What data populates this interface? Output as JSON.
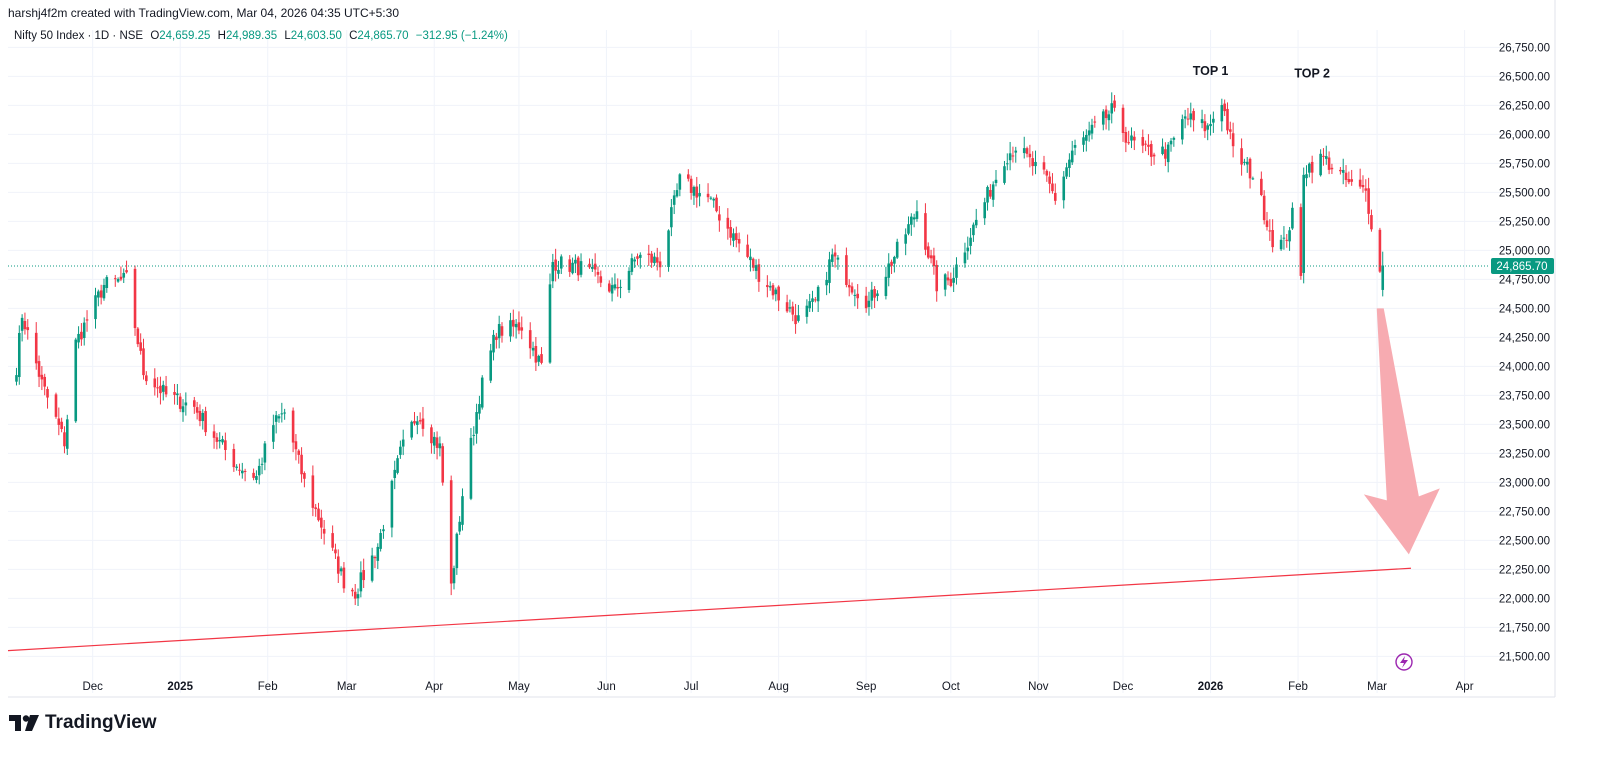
{
  "header": {
    "created_line": "harshj4f2m created with TradingView.com, Mar 04, 2026 04:35 UTC+5:30"
  },
  "legend": {
    "symbol": "Nifty 50 Index · 1D · NSE",
    "open_label": "O",
    "open_value": "24,659.25",
    "high_label": "H",
    "high_value": "24,989.35",
    "low_label": "L",
    "low_value": "24,603.50",
    "close_label": "C",
    "close_value": "24,865.70",
    "change": "−312.95 (−1.24%)"
  },
  "brand": {
    "name": "TradingView",
    "logo_icon": "tradingview-logo-icon"
  },
  "colors": {
    "up": "#089981",
    "down": "#f23645",
    "trendline": "#f23645",
    "arrow": "#f7a6ad",
    "grid": "#f0f3fa",
    "price_badge": "#089981"
  },
  "chart_data": {
    "type": "candlestick",
    "title": "Nifty 50 Index · 1D · NSE",
    "y_axis": {
      "ylim": [
        21400,
        26900
      ],
      "ticks": [
        21500,
        21750,
        22000,
        22250,
        22500,
        22750,
        23000,
        23250,
        23500,
        23750,
        24000,
        24250,
        24500,
        24750,
        25000,
        25250,
        25500,
        25750,
        26000,
        26250,
        26500,
        26750
      ],
      "tick_labels": [
        "21,500.00",
        "21,750.00",
        "22,000.00",
        "22,250.00",
        "22,500.00",
        "22,750.00",
        "23,000.00",
        "23,250.00",
        "23,500.00",
        "23,750.00",
        "24,000.00",
        "24,250.00",
        "24,500.00",
        "24,750.00",
        "25,000.00",
        "25,250.00",
        "25,500.00",
        "25,750.00",
        "26,000.00",
        "26,250.00",
        "26,500.00",
        "26,750.00"
      ],
      "current_price_label": "24,865.70",
      "current_price": 24865.7
    },
    "x_axis": {
      "range": [
        "2024-11-01",
        "2026-04-10"
      ],
      "ticks": [
        {
          "label": "Dec",
          "date": "2024-12-01",
          "bold": false
        },
        {
          "label": "2025",
          "date": "2025-01-01",
          "bold": true
        },
        {
          "label": "Feb",
          "date": "2025-02-01",
          "bold": false
        },
        {
          "label": "Mar",
          "date": "2025-03-01",
          "bold": false
        },
        {
          "label": "Apr",
          "date": "2025-04-01",
          "bold": false
        },
        {
          "label": "May",
          "date": "2025-05-01",
          "bold": false
        },
        {
          "label": "Jun",
          "date": "2025-06-01",
          "bold": false
        },
        {
          "label": "Jul",
          "date": "2025-07-01",
          "bold": false
        },
        {
          "label": "Aug",
          "date": "2025-08-01",
          "bold": false
        },
        {
          "label": "Sep",
          "date": "2025-09-01",
          "bold": false
        },
        {
          "label": "Oct",
          "date": "2025-10-01",
          "bold": false
        },
        {
          "label": "Nov",
          "date": "2025-11-01",
          "bold": false
        },
        {
          "label": "Dec",
          "date": "2025-12-01",
          "bold": false
        },
        {
          "label": "2026",
          "date": "2026-01-01",
          "bold": true
        },
        {
          "label": "Feb",
          "date": "2026-02-01",
          "bold": false
        },
        {
          "label": "Mar",
          "date": "2026-03-01",
          "bold": false
        },
        {
          "label": "Apr",
          "date": "2026-04-01",
          "bold": false
        }
      ]
    },
    "price_path": [
      [
        "2024-11-04",
        24000
      ],
      [
        "2024-11-06",
        24450
      ],
      [
        "2024-11-13",
        23850
      ],
      [
        "2024-11-21",
        23350
      ],
      [
        "2024-11-25",
        24200
      ],
      [
        "2024-12-05",
        24700
      ],
      [
        "2024-12-13",
        24750
      ],
      [
        "2024-12-19",
        23950
      ],
      [
        "2024-12-27",
        23750
      ],
      [
        "2025-01-06",
        23650
      ],
      [
        "2025-01-10",
        23500
      ],
      [
        "2025-01-21",
        23150
      ],
      [
        "2025-01-28",
        23050
      ],
      [
        "2025-02-03",
        23500
      ],
      [
        "2025-02-07",
        23600
      ],
      [
        "2025-02-14",
        23000
      ],
      [
        "2025-02-28",
        22150
      ],
      [
        "2025-03-04",
        22050
      ],
      [
        "2025-03-12",
        22450
      ],
      [
        "2025-03-20",
        23250
      ],
      [
        "2025-03-26",
        23600
      ],
      [
        "2025-04-03",
        23300
      ],
      [
        "2025-04-07",
        22100
      ],
      [
        "2025-04-11",
        22900
      ],
      [
        "2025-04-17",
        23750
      ],
      [
        "2025-04-23",
        24300
      ],
      [
        "2025-05-02",
        24350
      ],
      [
        "2025-05-09",
        24000
      ],
      [
        "2025-05-13",
        24900
      ],
      [
        "2025-05-23",
        24850
      ],
      [
        "2025-06-04",
        24650
      ],
      [
        "2025-06-12",
        24950
      ],
      [
        "2025-06-20",
        24900
      ],
      [
        "2025-06-27",
        25600
      ],
      [
        "2025-07-07",
        25450
      ],
      [
        "2025-07-18",
        25050
      ],
      [
        "2025-07-25",
        24800
      ],
      [
        "2025-08-01",
        24600
      ],
      [
        "2025-08-08",
        24400
      ],
      [
        "2025-08-14",
        24550
      ],
      [
        "2025-08-20",
        24950
      ],
      [
        "2025-08-27",
        24700
      ],
      [
        "2025-09-02",
        24550
      ],
      [
        "2025-09-11",
        24950
      ],
      [
        "2025-09-19",
        25350
      ],
      [
        "2025-09-26",
        24700
      ],
      [
        "2025-10-01",
        24750
      ],
      [
        "2025-10-09",
        25200
      ],
      [
        "2025-10-20",
        25800
      ],
      [
        "2025-10-24",
        25900
      ],
      [
        "2025-11-04",
        25600
      ],
      [
        "2025-11-07",
        25450
      ],
      [
        "2025-11-13",
        25850
      ],
      [
        "2025-11-21",
        26050
      ],
      [
        "2025-11-27",
        26200
      ],
      [
        "2025-12-03",
        25950
      ],
      [
        "2025-12-09",
        25850
      ],
      [
        "2025-12-17",
        25850
      ],
      [
        "2025-12-23",
        26150
      ],
      [
        "2025-12-31",
        26050
      ],
      [
        "2026-01-05",
        26300
      ],
      [
        "2026-01-09",
        25850
      ],
      [
        "2026-01-16",
        25650
      ],
      [
        "2026-01-23",
        25100
      ],
      [
        "2026-01-27",
        25050
      ],
      [
        "2026-01-30",
        25300
      ],
      [
        "2026-02-02",
        24750
      ],
      [
        "2026-02-03",
        25700
      ],
      [
        "2026-02-10",
        25800
      ],
      [
        "2026-02-16",
        25650
      ],
      [
        "2026-02-20",
        25550
      ],
      [
        "2026-02-25",
        25500
      ],
      [
        "2026-02-27",
        25250
      ],
      [
        "2026-03-02",
        24800
      ],
      [
        "2026-03-03",
        24870
      ]
    ],
    "trendline": {
      "start": [
        "2024-11-01",
        21550
      ],
      "end": [
        "2026-03-13",
        22260
      ]
    },
    "annotations": [
      {
        "text": "TOP 1",
        "date": "2026-01-01",
        "price": 26510
      },
      {
        "text": "TOP 2",
        "date": "2026-02-06",
        "price": 26490
      }
    ],
    "arrow": {
      "from": [
        "2026-03-03",
        24500
      ],
      "to": [
        "2026-03-08",
        22380
      ],
      "color": "#f7a6ad"
    },
    "grid": true
  }
}
